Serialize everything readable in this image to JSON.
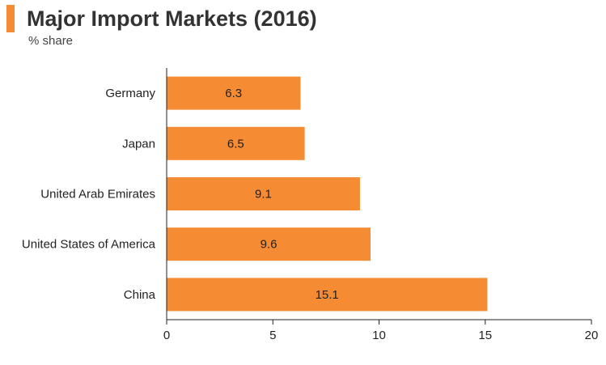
{
  "header": {
    "title": "Major Import Markets (2016)",
    "subtitle": "% share",
    "accent_color": "#f58b32"
  },
  "chart_data": {
    "type": "bar",
    "orientation": "horizontal",
    "title": "Major Import Markets (2016)",
    "subtitle": "% share",
    "xlabel": "",
    "ylabel": "",
    "categories": [
      "Germany",
      "Japan",
      "United Arab Emirates",
      "United States of America",
      "China"
    ],
    "values": [
      6.3,
      6.5,
      9.1,
      9.6,
      15.1
    ],
    "value_labels": [
      "6.3",
      "6.5",
      "9.1",
      "9.6",
      "15.1"
    ],
    "xlim": [
      0,
      20
    ],
    "xticks": [
      0,
      5,
      10,
      15,
      20
    ],
    "xtick_labels": [
      "0",
      "5",
      "10",
      "15",
      "20"
    ],
    "grid": false,
    "bar_color": "#f58b32",
    "axis_color": "#222222"
  }
}
